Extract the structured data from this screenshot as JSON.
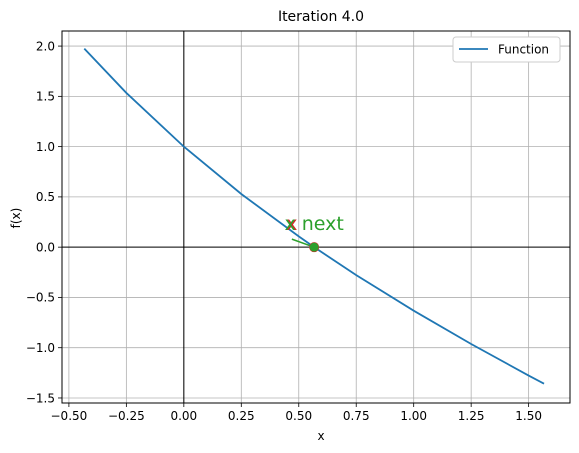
{
  "chart_data": {
    "type": "line",
    "title": "Iteration 4.0",
    "xlabel": "x",
    "ylabel": "f(x)",
    "xlim": [
      -0.53,
      1.68
    ],
    "ylim": [
      -1.55,
      2.15
    ],
    "xticks": [
      -0.5,
      -0.25,
      0.0,
      0.25,
      0.5,
      0.75,
      1.0,
      1.25,
      1.5
    ],
    "xtick_labels": [
      "−0.50",
      "−0.25",
      "0.00",
      "0.25",
      "0.50",
      "0.75",
      "1.00",
      "1.25",
      "1.50"
    ],
    "yticks": [
      -1.5,
      -1.0,
      -0.5,
      0.0,
      0.5,
      1.0,
      1.5,
      2.0
    ],
    "ytick_labels": [
      "−1.5",
      "−1.0",
      "−0.5",
      "0.0",
      "0.5",
      "1.0",
      "1.5",
      "2.0"
    ],
    "grid": true,
    "legend_position": "top-right",
    "series": [
      {
        "name": "Function",
        "color": "#1f77b4",
        "x": [
          -0.433,
          -0.25,
          0.0,
          0.25,
          0.5,
          0.567,
          0.75,
          1.0,
          1.25,
          1.5,
          1.567
        ],
        "y": [
          1.975,
          1.534,
          1.0,
          0.529,
          0.107,
          0.0,
          -0.278,
          -0.632,
          -0.963,
          -1.277,
          -1.358
        ]
      }
    ],
    "points": [
      {
        "name": "x",
        "x": 0.567,
        "y": 0.0,
        "color": "#d62728"
      },
      {
        "name": "x next",
        "x": 0.567,
        "y": 0.0,
        "color": "#2ca02c"
      }
    ],
    "annotations": [
      {
        "text": "x",
        "x": 0.47,
        "y": 0.17,
        "color": "#d62728"
      },
      {
        "text": "x next",
        "x": 0.567,
        "y": 0.17,
        "color": "#2ca02c"
      }
    ],
    "tangent_segment": {
      "x": [
        0.47,
        0.567
      ],
      "y": [
        0.08,
        0.0
      ],
      "color": "#2ca02c"
    }
  }
}
